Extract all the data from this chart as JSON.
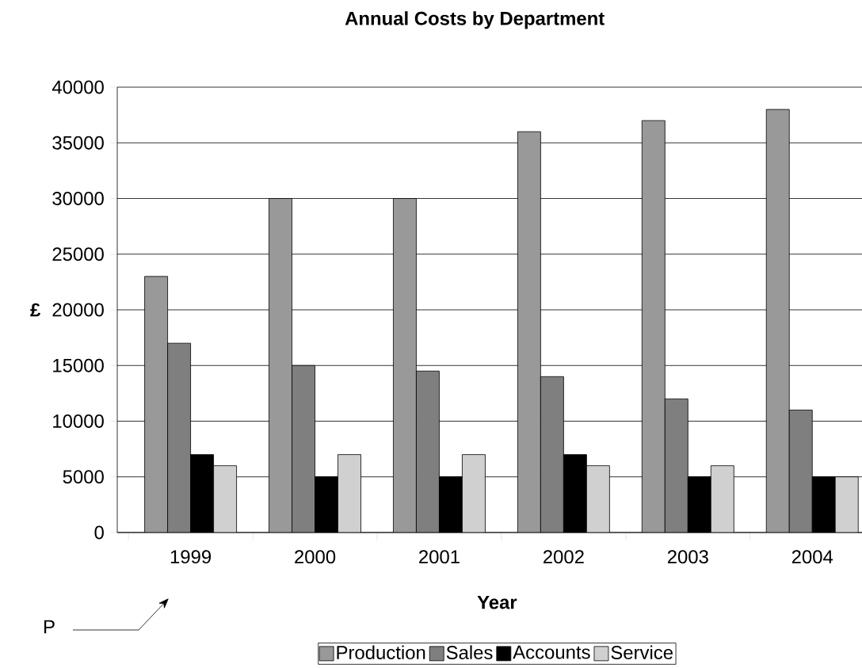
{
  "chart_data": {
    "type": "bar",
    "title": "Annual Costs by Department",
    "xlabel": "Year",
    "ylabel": "£",
    "categories": [
      "1999",
      "2000",
      "2001",
      "2002",
      "2003",
      "2004"
    ],
    "series": [
      {
        "name": "Production",
        "color": "#999999",
        "values": [
          23000,
          30000,
          30000,
          36000,
          37000,
          38000
        ]
      },
      {
        "name": "Sales",
        "color": "#7f7f7f",
        "values": [
          17000,
          15000,
          14500,
          14000,
          12000,
          11000
        ]
      },
      {
        "name": "Accounts",
        "color": "#000000",
        "values": [
          7000,
          5000,
          5000,
          7000,
          5000,
          5000
        ]
      },
      {
        "name": "Service",
        "color": "#d0d0d0",
        "values": [
          6000,
          7000,
          7000,
          6000,
          6000,
          5000
        ]
      }
    ],
    "ylim": [
      0,
      40000
    ],
    "yticks": [
      0,
      5000,
      10000,
      15000,
      20000,
      25000,
      30000,
      35000,
      40000
    ],
    "grid": "y",
    "legend": "bottom",
    "annotations": [
      "P"
    ]
  }
}
